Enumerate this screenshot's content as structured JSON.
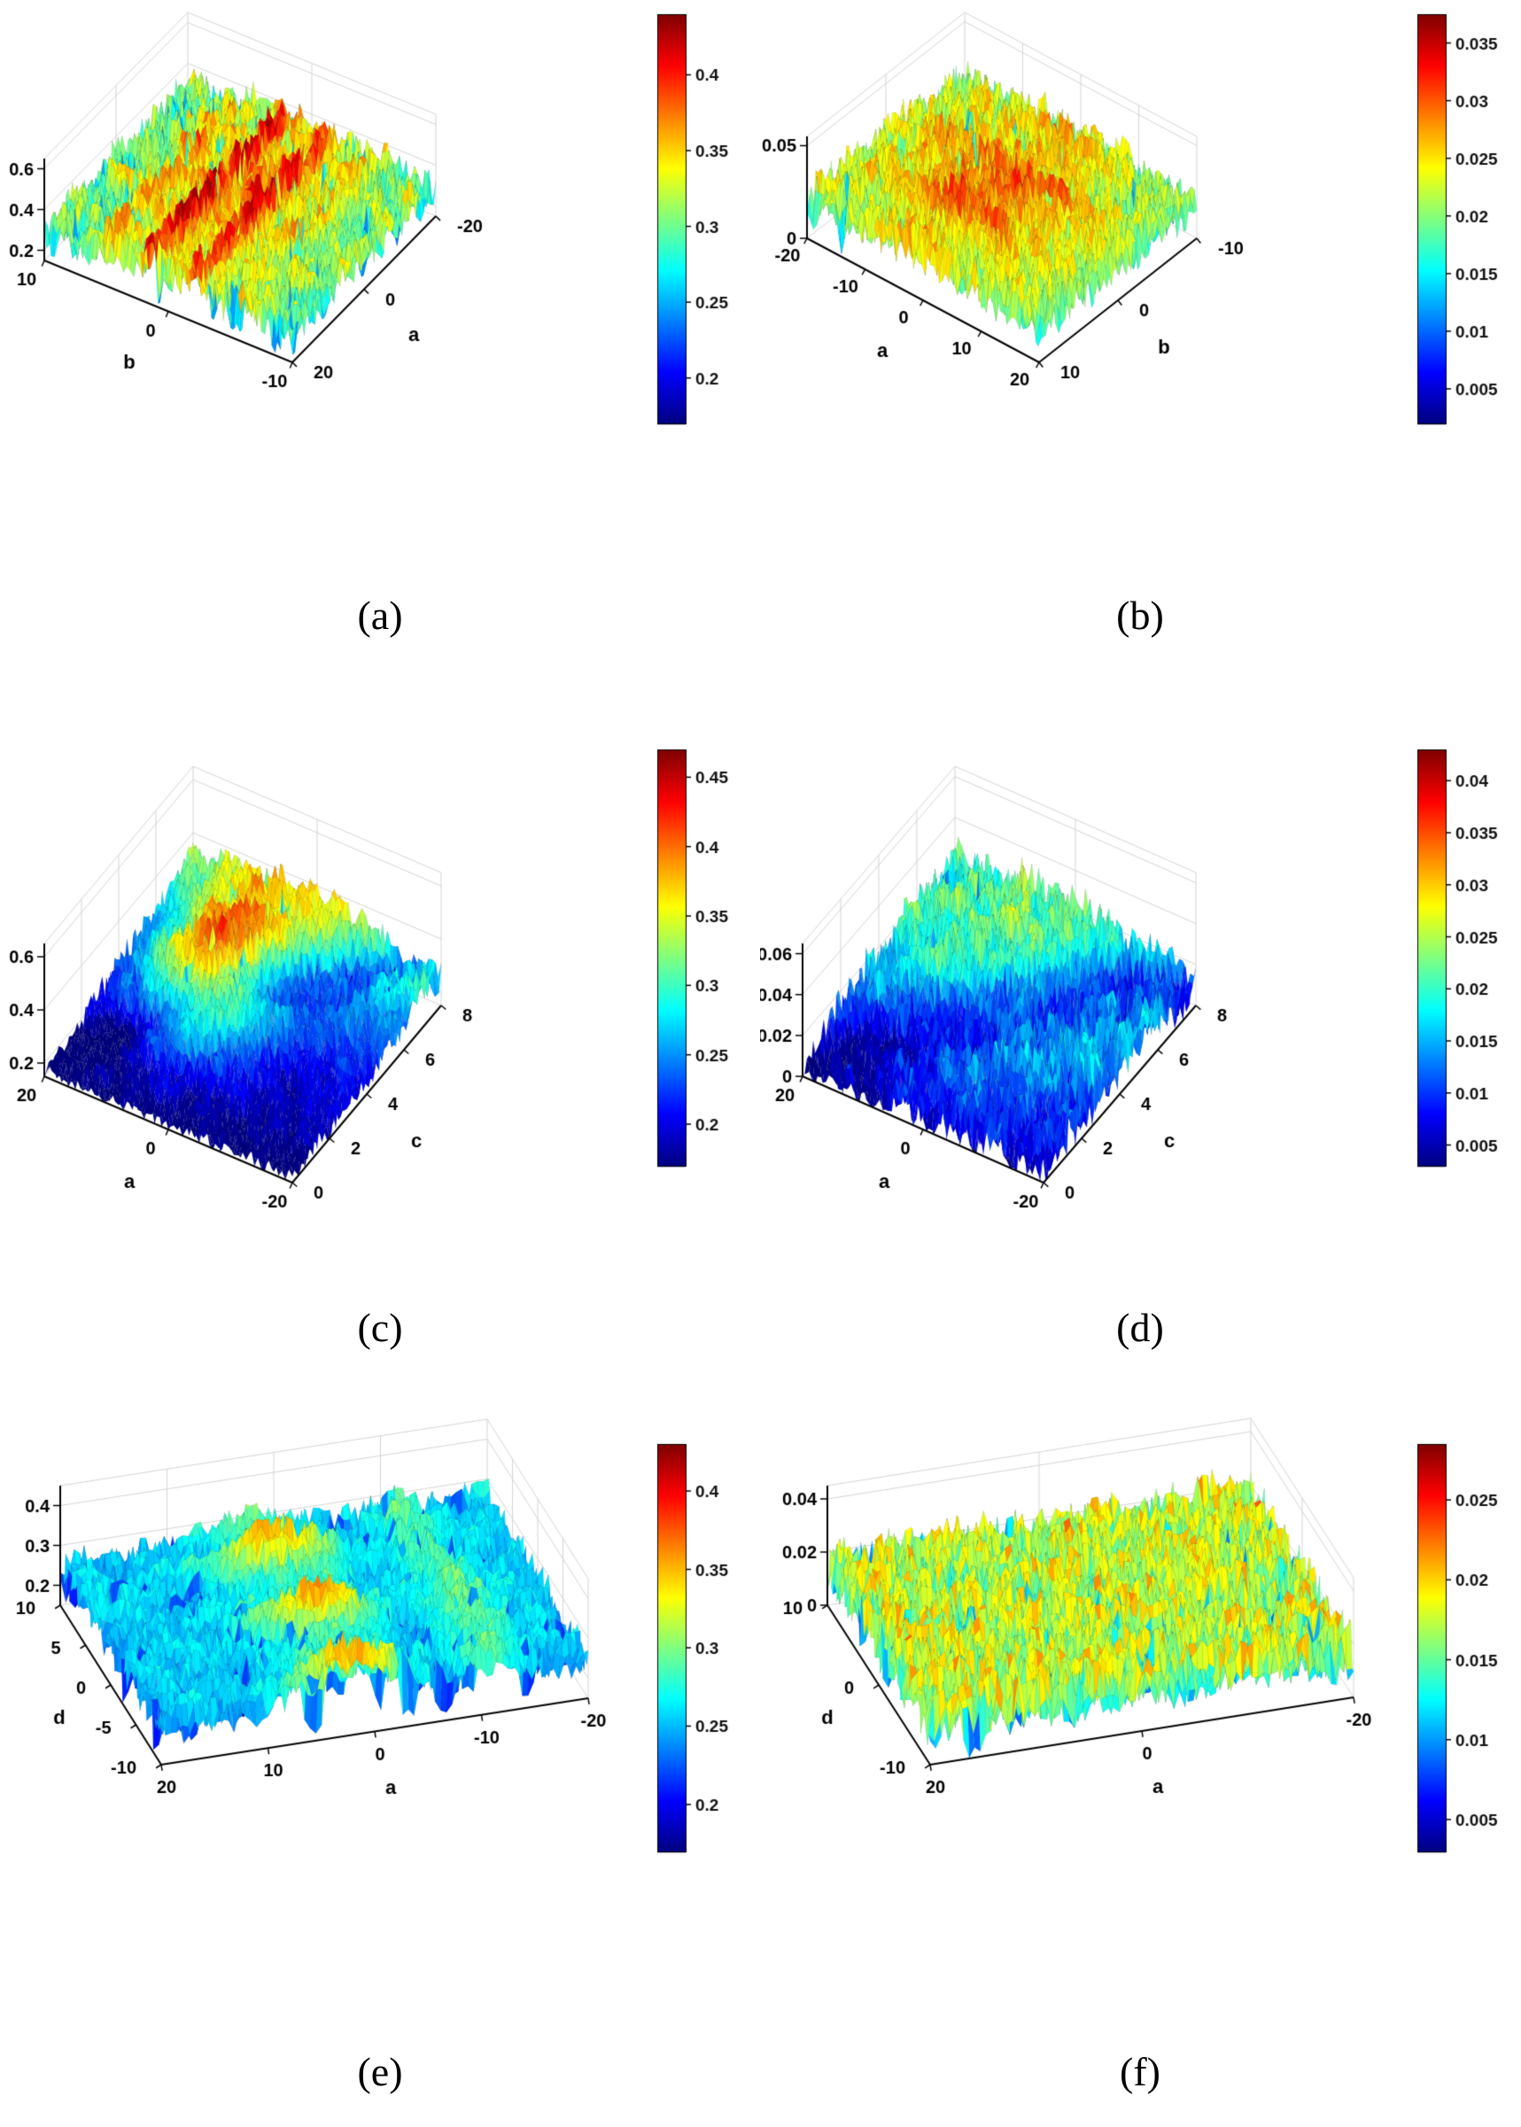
{
  "chart_data": [
    {
      "id": "a",
      "type": "surface",
      "caption": "(a)",
      "axes": {
        "left": {
          "label": "b",
          "ticks": [
            10,
            0,
            -10
          ],
          "range": [
            -10,
            10
          ]
        },
        "right": {
          "label": "a",
          "ticks": [
            -20,
            0,
            20
          ],
          "range": [
            -20,
            20
          ]
        },
        "z": {
          "ticks": [
            0.2,
            0.4,
            0.6
          ],
          "range": [
            0.15,
            0.65
          ]
        }
      },
      "colorbar": {
        "colormap": "jet",
        "min": 0.17,
        "max": 0.44,
        "ticks": [
          0.2,
          0.25,
          0.3,
          0.35,
          0.4
        ]
      },
      "surface": {
        "seed": 11,
        "base": 0.285,
        "slope_u": 0,
        "slope_v": 0,
        "peaks": [
          {
            "u": 0.5,
            "v": 0.5,
            "su": 0.38,
            "sv": 0.38,
            "amp": 0.035
          }
        ],
        "stripes": [
          {
            "axis": "u",
            "center": 0.5,
            "width": 0.2,
            "amp": 0.1,
            "freq": 34,
            "along": "u",
            "phase": 0.8
          }
        ],
        "lf": 0.05,
        "hf": 0.045,
        "crev_p": 0.01,
        "clip": [
          0.17,
          0.44
        ]
      }
    },
    {
      "id": "b",
      "type": "surface",
      "caption": "(b)",
      "axes": {
        "left": {
          "label": "a",
          "ticks": [
            -20,
            -10,
            0,
            10,
            20
          ],
          "range": [
            -20,
            20
          ]
        },
        "right": {
          "label": "b",
          "ticks": [
            -10,
            0,
            10
          ],
          "range": [
            -10,
            10
          ]
        },
        "z": {
          "ticks": [
            0,
            0.05
          ],
          "range": [
            0,
            0.055
          ]
        }
      },
      "colorbar": {
        "colormap": "jet",
        "min": 0.002,
        "max": 0.0375,
        "ticks": [
          0.005,
          0.01,
          0.015,
          0.02,
          0.025,
          0.03,
          0.035
        ]
      },
      "surface": {
        "seed": 22,
        "base": 0.019,
        "slope_u": 0,
        "slope_v": 0,
        "peaks": [
          {
            "u": 0.5,
            "v": 0.45,
            "su": 0.3,
            "sv": 0.3,
            "amp": 0.007
          }
        ],
        "stripes": [
          {
            "axis": "u",
            "center": 0.5,
            "width": 0.25,
            "amp": 0.004,
            "freq": 21,
            "along": "v",
            "phase": 2
          }
        ],
        "lf": 0.0045,
        "hf": 0.0062,
        "crev_p": 0.004,
        "clip": [
          0.002,
          0.0375
        ]
      }
    },
    {
      "id": "c",
      "type": "surface",
      "caption": "(c)",
      "axes": {
        "left": {
          "label": "a",
          "ticks": [
            20,
            0,
            -20
          ],
          "range": [
            -20,
            20
          ]
        },
        "right": {
          "label": "c",
          "ticks": [
            8,
            6,
            4,
            2,
            0
          ],
          "range": [
            0,
            8
          ]
        },
        "z": {
          "ticks": [
            0.2,
            0.4,
            0.6
          ],
          "range": [
            0.15,
            0.65
          ]
        }
      },
      "colorbar": {
        "colormap": "jet",
        "min": 0.17,
        "max": 0.47,
        "ticks": [
          0.2,
          0.25,
          0.3,
          0.35,
          0.4,
          0.45
        ]
      },
      "surface": {
        "seed": 33,
        "base": 0.21,
        "slope_u": 0,
        "slope_v": 0.1,
        "peaks": [
          {
            "u": 0.65,
            "v": 0.55,
            "su": 0.16,
            "sv": 0.2,
            "amp": 0.2
          },
          {
            "u": 0.5,
            "v": 1.0,
            "su": 0.45,
            "sv": 0.18,
            "amp": 0.09
          }
        ],
        "stripes": [
          {
            "axis": "diag",
            "center": 0.55,
            "width": 0.05,
            "amp": -0.07
          }
        ],
        "lf": 0.03,
        "hf": 0.028,
        "crev_p": 0.004,
        "clip": [
          0.17,
          0.47
        ]
      }
    },
    {
      "id": "d",
      "type": "surface",
      "caption": "(d)",
      "axes": {
        "left": {
          "label": "a",
          "ticks": [
            20,
            0,
            -20
          ],
          "range": [
            -20,
            20
          ]
        },
        "right": {
          "label": "c",
          "ticks": [
            8,
            6,
            4,
            2,
            0
          ],
          "range": [
            0,
            8
          ]
        },
        "z": {
          "ticks": [
            0,
            0.02,
            0.04,
            0.06
          ],
          "range": [
            0,
            0.065
          ]
        }
      },
      "colorbar": {
        "colormap": "jet",
        "min": 0.003,
        "max": 0.043,
        "ticks": [
          0.005,
          0.01,
          0.015,
          0.02,
          0.025,
          0.03,
          0.035,
          0.04
        ]
      },
      "surface": {
        "seed": 44,
        "base": 0.013,
        "slope_u": 0,
        "slope_v": 0.011,
        "peaks": [
          {
            "u": 0.6,
            "v": 0.6,
            "su": 0.3,
            "sv": 0.3,
            "amp": 0.007
          }
        ],
        "stripes": [
          {
            "axis": "diag",
            "center": 0.5,
            "width": 0.08,
            "amp": -0.009
          }
        ],
        "lf": 0.005,
        "hf": 0.0058,
        "crev_p": 0.003,
        "clip": [
          0.003,
          0.043
        ]
      }
    },
    {
      "id": "e",
      "type": "surface",
      "caption": "(e)",
      "axes": {
        "left": {
          "label": "d",
          "ticks": [
            10,
            5,
            0,
            -5,
            -10
          ],
          "range": [
            -10,
            10
          ]
        },
        "right": {
          "label": "a",
          "ticks": [
            -20,
            -10,
            0,
            10,
            20
          ],
          "range": [
            -20,
            20
          ]
        },
        "z": {
          "ticks": [
            0.2,
            0.3,
            0.4
          ],
          "range": [
            0.15,
            0.45
          ]
        }
      },
      "colorbar": {
        "colormap": "jet",
        "min": 0.17,
        "max": 0.43,
        "ticks": [
          0.2,
          0.25,
          0.3,
          0.35,
          0.4
        ]
      },
      "surface": {
        "seed": 55,
        "base": 0.252,
        "slope_u": 0,
        "slope_v": 0,
        "peaks": [],
        "stripes": [
          {
            "axis": "v",
            "center": 0.45,
            "width": 0.09,
            "amp": 0.1,
            "freq": 17,
            "along": "u",
            "phase": 1.2
          },
          {
            "axis": "v",
            "center": 0.78,
            "width": 0.05,
            "amp": 0.035
          }
        ],
        "lf": 0.018,
        "hf": 0.026,
        "crev_p": 0.009,
        "clip": [
          0.17,
          0.43
        ]
      }
    },
    {
      "id": "f",
      "type": "surface",
      "caption": "(f)",
      "axes": {
        "left": {
          "label": "d",
          "ticks": [
            10,
            0,
            -10
          ],
          "range": [
            -10,
            10
          ]
        },
        "right": {
          "label": "a",
          "ticks": [
            -20,
            0,
            20
          ],
          "range": [
            -20,
            20
          ]
        },
        "z": {
          "ticks": [
            0,
            0.02,
            0.04
          ],
          "range": [
            0,
            0.045
          ]
        }
      },
      "colorbar": {
        "colormap": "jet",
        "min": 0.003,
        "max": 0.0285,
        "ticks": [
          0.005,
          0.01,
          0.015,
          0.02,
          0.025
        ]
      },
      "surface": {
        "seed": 66,
        "base": 0.0165,
        "slope_u": 0,
        "slope_v": 0,
        "peaks": [],
        "stripes": [],
        "lf": 0.0035,
        "hf": 0.0072,
        "crev_p": 0.007,
        "clip": [
          0.003,
          0.0285
        ]
      }
    }
  ]
}
